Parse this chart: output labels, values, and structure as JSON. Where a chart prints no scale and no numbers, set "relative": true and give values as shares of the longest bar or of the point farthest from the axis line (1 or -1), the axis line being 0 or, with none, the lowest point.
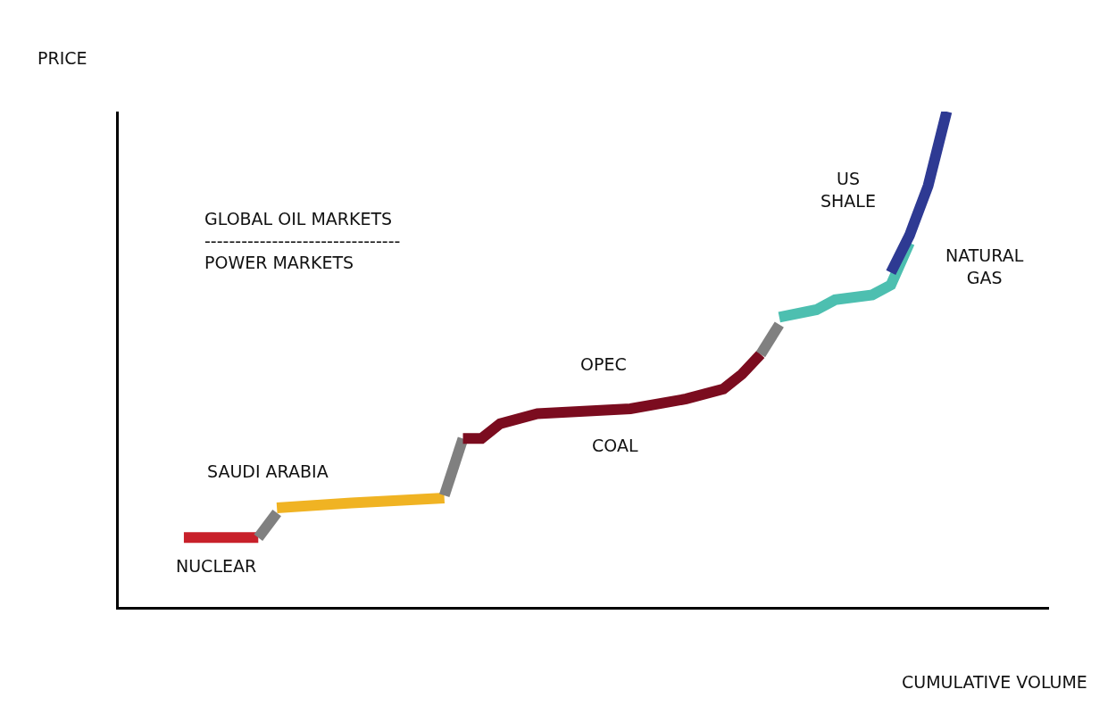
{
  "chart_data": {
    "type": "line",
    "relative": true,
    "xlabel": "CUMULATIVE VOLUME",
    "ylabel": "PRICE",
    "marker": "none",
    "line_style": "solid",
    "categories": [
      null,
      null,
      null,
      null,
      null,
      null,
      null,
      null,
      null,
      null,
      null,
      null,
      null,
      null,
      null,
      null,
      null,
      null,
      null,
      null,
      null,
      null,
      null,
      null,
      null,
      null,
      null,
      null,
      null,
      null,
      null,
      null,
      null,
      null,
      null,
      null,
      null,
      null,
      null,
      null,
      null,
      null,
      null,
      null,
      null,
      null,
      null,
      null,
      null,
      null
    ],
    "series": [
      {
        "color": "#c8202a",
        "values": [
          null,
          null,
          null,
          0.14,
          null,
          null,
          null,
          0.14,
          null,
          null,
          null,
          null,
          null,
          null,
          null,
          null,
          null,
          null,
          null,
          null,
          null,
          null,
          null,
          null,
          null,
          null,
          null,
          null,
          null,
          null,
          null,
          null,
          null,
          null,
          null,
          null,
          null,
          null,
          null,
          null,
          null,
          null,
          null,
          null,
          null,
          null,
          null,
          null,
          null,
          null
        ]
      },
      {
        "color": "#808080",
        "values": [
          null,
          null,
          null,
          null,
          null,
          null,
          null,
          0.14,
          0.19,
          null,
          null,
          null,
          null,
          null,
          null,
          null,
          null,
          null,
          null,
          null,
          null,
          null,
          null,
          null,
          null,
          null,
          null,
          null,
          null,
          null,
          null,
          null,
          null,
          null,
          null,
          null,
          null,
          null,
          null,
          null,
          null,
          null,
          null,
          null,
          null,
          null,
          null,
          null,
          null,
          null
        ]
      },
      {
        "color": "#f0b323",
        "values": [
          null,
          null,
          null,
          null,
          null,
          null,
          null,
          null,
          0.2,
          null,
          null,
          null,
          0.21,
          null,
          null,
          null,
          null,
          0.22,
          null,
          null,
          null,
          null,
          null,
          null,
          null,
          null,
          null,
          null,
          null,
          null,
          null,
          null,
          null,
          null,
          null,
          null,
          null,
          null,
          null,
          null,
          null,
          null,
          null,
          null,
          null,
          null,
          null,
          null,
          null,
          null
        ]
      },
      {
        "color": "#808080",
        "values": [
          null,
          null,
          null,
          null,
          null,
          null,
          null,
          null,
          null,
          null,
          null,
          null,
          null,
          null,
          null,
          null,
          null,
          0.225,
          0.34,
          null,
          null,
          null,
          null,
          null,
          null,
          null,
          null,
          null,
          null,
          null,
          null,
          null,
          null,
          null,
          null,
          null,
          null,
          null,
          null,
          null,
          null,
          null,
          null,
          null,
          null,
          null,
          null,
          null,
          null,
          null
        ]
      },
      {
        "color": "#7b0c1f",
        "values": [
          null,
          null,
          null,
          null,
          null,
          null,
          null,
          null,
          null,
          null,
          null,
          null,
          null,
          null,
          null,
          null,
          null,
          null,
          0.34,
          0.34,
          0.37,
          null,
          0.39,
          null,
          null,
          null,
          null,
          0.4,
          null,
          null,
          0.42,
          null,
          0.44,
          0.47,
          0.51,
          null,
          null,
          null,
          null,
          null,
          null,
          null,
          null,
          null,
          null,
          null,
          null,
          null,
          null,
          null
        ]
      },
      {
        "color": "#808080",
        "values": [
          null,
          null,
          null,
          null,
          null,
          null,
          null,
          null,
          null,
          null,
          null,
          null,
          null,
          null,
          null,
          null,
          null,
          null,
          null,
          null,
          null,
          null,
          null,
          null,
          null,
          null,
          null,
          null,
          null,
          null,
          null,
          null,
          null,
          null,
          0.51,
          0.57,
          null,
          null,
          null,
          null,
          null,
          null,
          null,
          null,
          null,
          null,
          null,
          null,
          null,
          null
        ]
      },
      {
        "color": "#4dbfb0",
        "values": [
          null,
          null,
          null,
          null,
          null,
          null,
          null,
          null,
          null,
          null,
          null,
          null,
          null,
          null,
          null,
          null,
          null,
          null,
          null,
          null,
          null,
          null,
          null,
          null,
          null,
          null,
          null,
          null,
          null,
          null,
          null,
          null,
          null,
          null,
          null,
          0.585,
          null,
          0.6,
          0.62,
          null,
          0.63,
          0.65,
          0.735,
          null,
          null,
          null,
          null,
          null,
          null,
          null
        ]
      },
      {
        "color": "#2e3a93",
        "values": [
          null,
          null,
          null,
          null,
          null,
          null,
          null,
          null,
          null,
          null,
          null,
          null,
          null,
          null,
          null,
          null,
          null,
          null,
          null,
          null,
          null,
          null,
          null,
          null,
          null,
          null,
          null,
          null,
          null,
          null,
          null,
          null,
          null,
          null,
          null,
          null,
          null,
          null,
          null,
          null,
          null,
          0.675,
          0.75,
          0.85,
          1.0,
          null,
          null,
          null,
          null,
          null
        ]
      }
    ],
    "annotations": [
      "NUCLEAR",
      "SAUDI ARABIA",
      "OPEC",
      "COAL",
      "US\nSHALE",
      "NATURAL\nGAS",
      "GLOBAL OIL MARKETS\n--------------------------------\nPOWER MARKETS"
    ]
  }
}
